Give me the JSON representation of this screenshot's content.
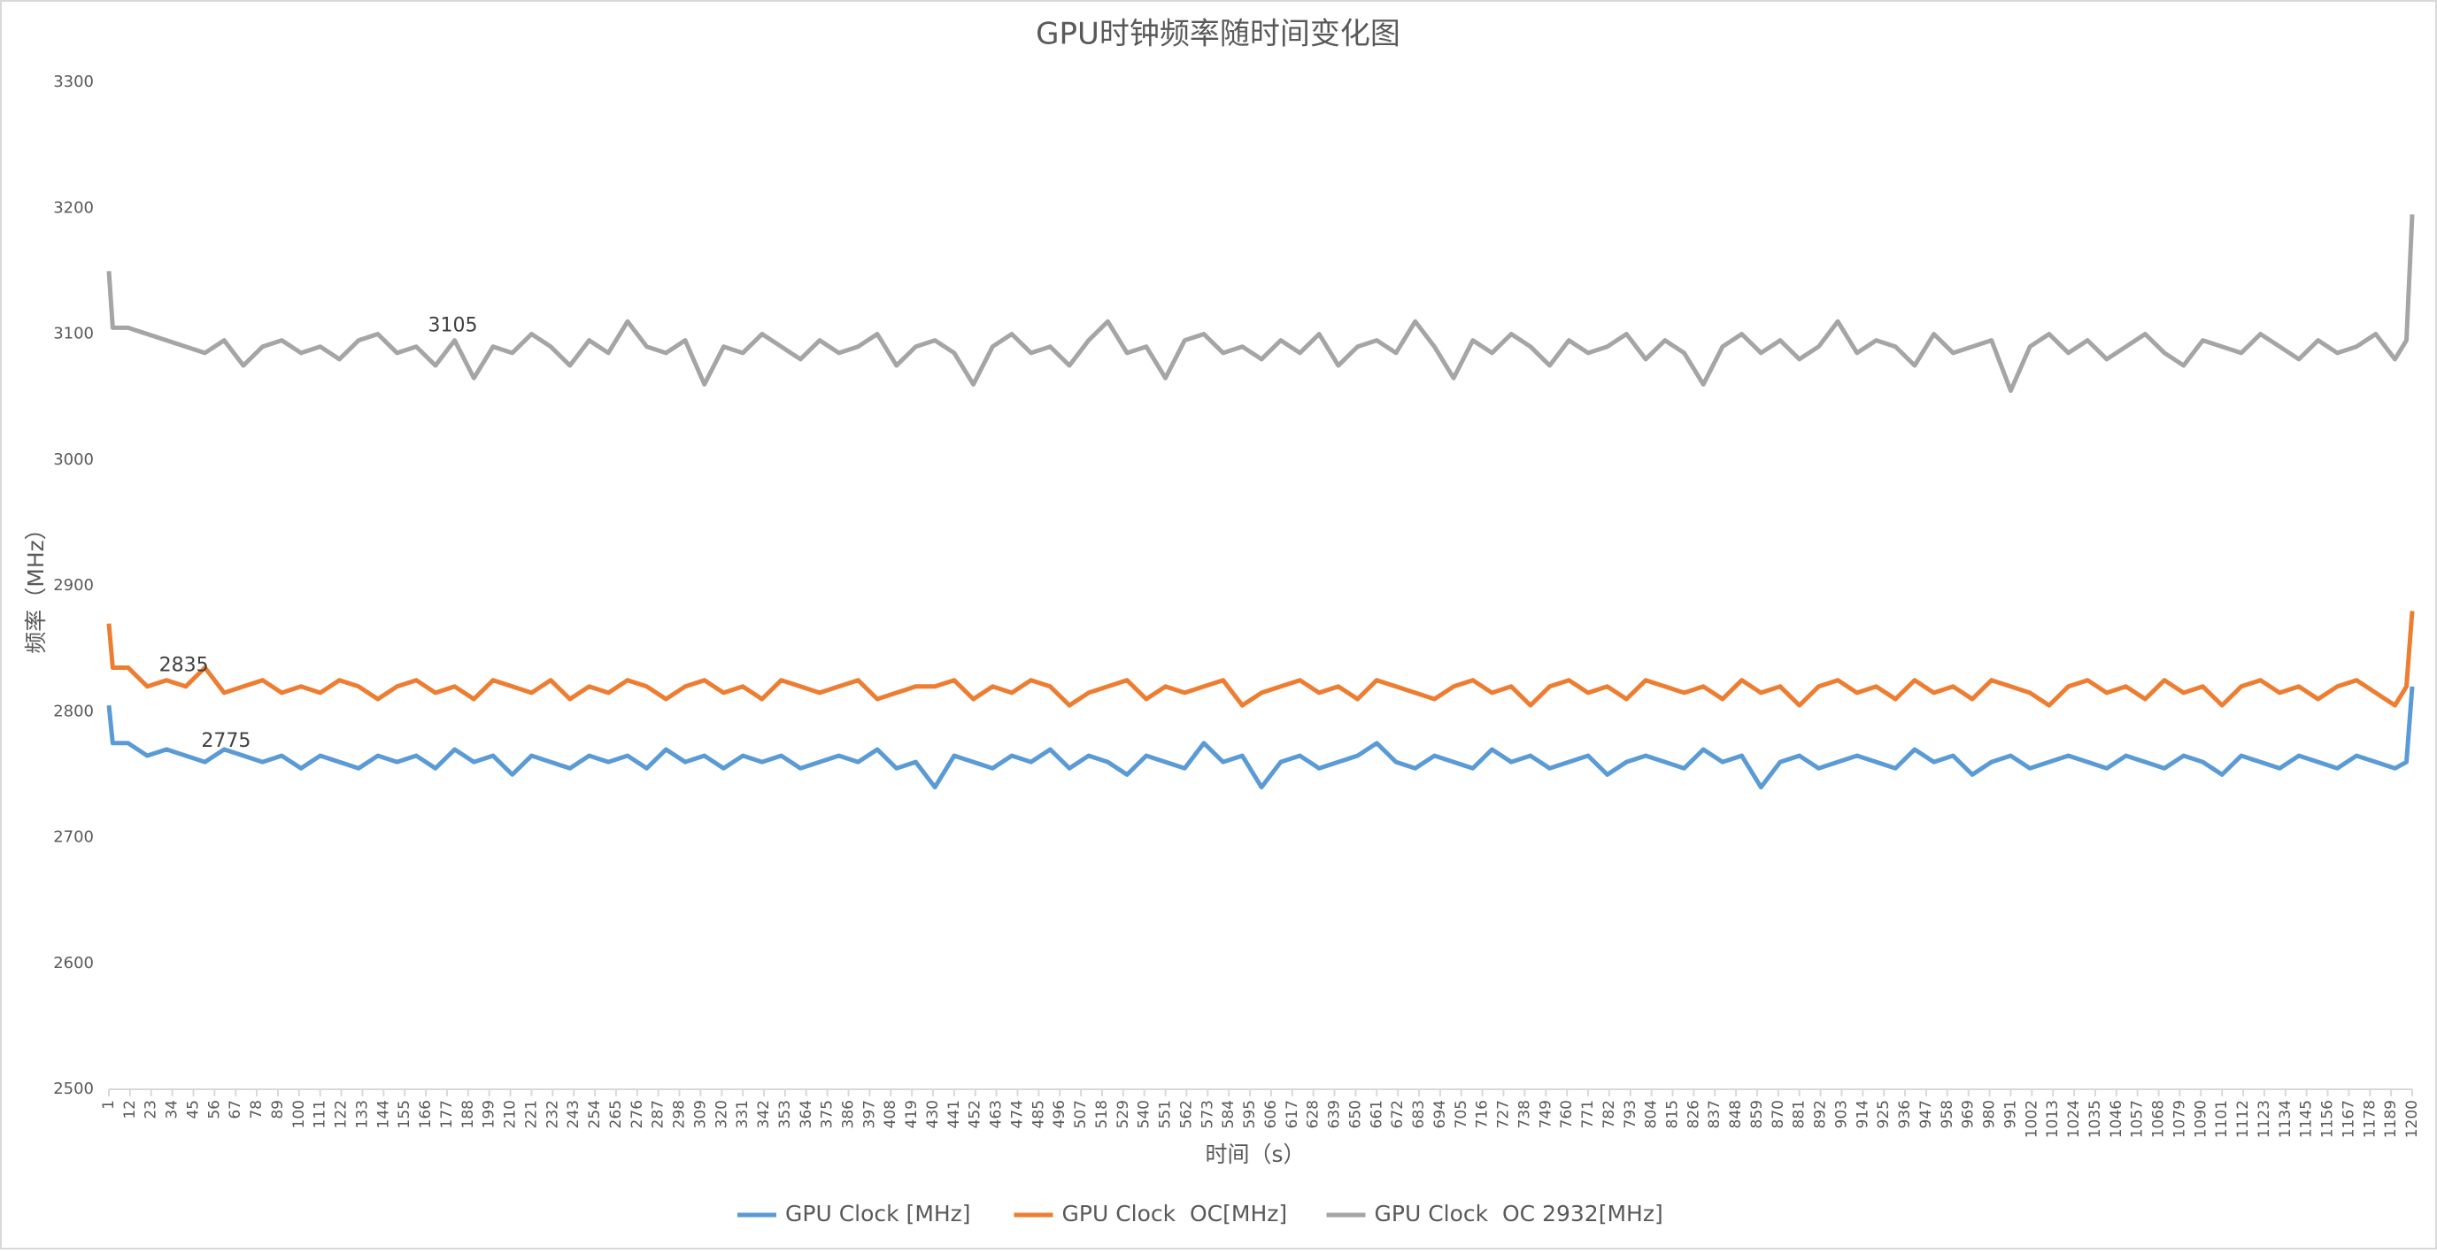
{
  "chart_data": {
    "type": "line",
    "title": "GPU时钟频率随时间变化图",
    "x_label": "时间（s）",
    "y_label": "频率（MHz）",
    "legend": "bottom",
    "grid": false,
    "xlim": [
      1,
      1200
    ],
    "ylim": [
      2500,
      3300
    ],
    "yticks": [
      2500,
      2600,
      2700,
      2800,
      2900,
      3000,
      3100,
      3200,
      3300
    ],
    "xticks": [
      1,
      12,
      23,
      34,
      45,
      56,
      67,
      78,
      89,
      100,
      111,
      122,
      133,
      144,
      155,
      166,
      177,
      188,
      199,
      210,
      221,
      232,
      243,
      254,
      265,
      276,
      287,
      298,
      309,
      320,
      331,
      342,
      353,
      364,
      375,
      386,
      397,
      408,
      419,
      430,
      441,
      452,
      463,
      474,
      485,
      496,
      507,
      518,
      529,
      540,
      551,
      562,
      573,
      584,
      595,
      606,
      617,
      628,
      639,
      650,
      661,
      672,
      683,
      694,
      705,
      716,
      727,
      738,
      749,
      760,
      771,
      782,
      793,
      804,
      815,
      826,
      837,
      848,
      859,
      870,
      881,
      892,
      903,
      914,
      925,
      936,
      947,
      958,
      969,
      980,
      991,
      1002,
      1013,
      1024,
      1035,
      1046,
      1057,
      1068,
      1079,
      1090,
      1101,
      1112,
      1123,
      1134,
      1145,
      1156,
      1167,
      1178,
      1189,
      1200
    ],
    "x": [
      1,
      3,
      11,
      21,
      31,
      41,
      51,
      61,
      71,
      81,
      91,
      101,
      111,
      121,
      131,
      141,
      151,
      161,
      171,
      181,
      191,
      201,
      211,
      221,
      231,
      241,
      251,
      261,
      271,
      281,
      291,
      301,
      311,
      321,
      331,
      341,
      351,
      361,
      371,
      381,
      391,
      401,
      411,
      421,
      431,
      441,
      451,
      461,
      471,
      481,
      491,
      501,
      511,
      521,
      531,
      541,
      551,
      561,
      571,
      581,
      591,
      601,
      611,
      621,
      631,
      641,
      651,
      661,
      671,
      681,
      691,
      701,
      711,
      721,
      731,
      741,
      751,
      761,
      771,
      781,
      791,
      801,
      811,
      821,
      831,
      841,
      851,
      861,
      871,
      881,
      891,
      901,
      911,
      921,
      931,
      941,
      951,
      961,
      971,
      981,
      991,
      1001,
      1011,
      1021,
      1031,
      1041,
      1051,
      1061,
      1071,
      1081,
      1091,
      1101,
      1111,
      1121,
      1131,
      1141,
      1151,
      1161,
      1171,
      1181,
      1191,
      1197,
      1200
    ],
    "series": [
      {
        "name": "GPU Clock [MHz]",
        "color": "#5b9bd5",
        "values": [
          2805,
          2775,
          2775,
          2765,
          2770,
          2765,
          2760,
          2770,
          2765,
          2760,
          2765,
          2755,
          2765,
          2760,
          2755,
          2765,
          2760,
          2765,
          2755,
          2770,
          2760,
          2765,
          2750,
          2765,
          2760,
          2755,
          2765,
          2760,
          2765,
          2755,
          2770,
          2760,
          2765,
          2755,
          2765,
          2760,
          2765,
          2755,
          2760,
          2765,
          2760,
          2770,
          2755,
          2760,
          2740,
          2765,
          2760,
          2755,
          2765,
          2760,
          2770,
          2755,
          2765,
          2760,
          2750,
          2765,
          2760,
          2755,
          2775,
          2760,
          2765,
          2740,
          2760,
          2765,
          2755,
          2760,
          2765,
          2775,
          2760,
          2755,
          2765,
          2760,
          2755,
          2770,
          2760,
          2765,
          2755,
          2760,
          2765,
          2750,
          2760,
          2765,
          2760,
          2755,
          2770,
          2760,
          2765,
          2740,
          2760,
          2765,
          2755,
          2760,
          2765,
          2760,
          2755,
          2770,
          2760,
          2765,
          2750,
          2760,
          2765,
          2755,
          2760,
          2765,
          2760,
          2755,
          2765,
          2760,
          2755,
          2765,
          2760,
          2750,
          2765,
          2760,
          2755,
          2765,
          2760,
          2755,
          2765,
          2760,
          2755,
          2760,
          2820
        ],
        "data_labels": [
          {
            "x": 62,
            "value": 2775
          }
        ]
      },
      {
        "name": "GPU Clock  OC[MHz]",
        "color": "#ed7d31",
        "values": [
          2870,
          2835,
          2835,
          2820,
          2825,
          2820,
          2835,
          2815,
          2820,
          2825,
          2815,
          2820,
          2815,
          2825,
          2820,
          2810,
          2820,
          2825,
          2815,
          2820,
          2810,
          2825,
          2820,
          2815,
          2825,
          2810,
          2820,
          2815,
          2825,
          2820,
          2810,
          2820,
          2825,
          2815,
          2820,
          2810,
          2825,
          2820,
          2815,
          2820,
          2825,
          2810,
          2815,
          2820,
          2820,
          2825,
          2810,
          2820,
          2815,
          2825,
          2820,
          2805,
          2815,
          2820,
          2825,
          2810,
          2820,
          2815,
          2820,
          2825,
          2805,
          2815,
          2820,
          2825,
          2815,
          2820,
          2810,
          2825,
          2820,
          2815,
          2810,
          2820,
          2825,
          2815,
          2820,
          2805,
          2820,
          2825,
          2815,
          2820,
          2810,
          2825,
          2820,
          2815,
          2820,
          2810,
          2825,
          2815,
          2820,
          2805,
          2820,
          2825,
          2815,
          2820,
          2810,
          2825,
          2815,
          2820,
          2810,
          2825,
          2820,
          2815,
          2805,
          2820,
          2825,
          2815,
          2820,
          2810,
          2825,
          2815,
          2820,
          2805,
          2820,
          2825,
          2815,
          2820,
          2810,
          2820,
          2825,
          2815,
          2805,
          2820,
          2880
        ],
        "data_labels": [
          {
            "x": 40,
            "value": 2835
          }
        ]
      },
      {
        "name": "GPU Clock  OC 2932[MHz]",
        "color": "#a5a5a5",
        "values": [
          3150,
          3105,
          3105,
          3100,
          3095,
          3090,
          3085,
          3095,
          3075,
          3090,
          3095,
          3085,
          3090,
          3080,
          3095,
          3100,
          3085,
          3090,
          3075,
          3095,
          3065,
          3090,
          3085,
          3100,
          3090,
          3075,
          3095,
          3085,
          3110,
          3090,
          3085,
          3095,
          3060,
          3090,
          3085,
          3100,
          3090,
          3080,
          3095,
          3085,
          3090,
          3100,
          3075,
          3090,
          3095,
          3085,
          3060,
          3090,
          3100,
          3085,
          3090,
          3075,
          3095,
          3110,
          3085,
          3090,
          3065,
          3095,
          3100,
          3085,
          3090,
          3080,
          3095,
          3085,
          3100,
          3075,
          3090,
          3095,
          3085,
          3110,
          3090,
          3065,
          3095,
          3085,
          3100,
          3090,
          3075,
          3095,
          3085,
          3090,
          3100,
          3080,
          3095,
          3085,
          3060,
          3090,
          3100,
          3085,
          3095,
          3080,
          3090,
          3110,
          3085,
          3095,
          3090,
          3075,
          3100,
          3085,
          3090,
          3095,
          3055,
          3090,
          3100,
          3085,
          3095,
          3080,
          3090,
          3100,
          3085,
          3075,
          3095,
          3090,
          3085,
          3100,
          3090,
          3080,
          3095,
          3085,
          3090,
          3100,
          3080,
          3095,
          3195
        ],
        "data_labels": [
          {
            "x": 180,
            "value": 3105
          }
        ]
      }
    ]
  }
}
